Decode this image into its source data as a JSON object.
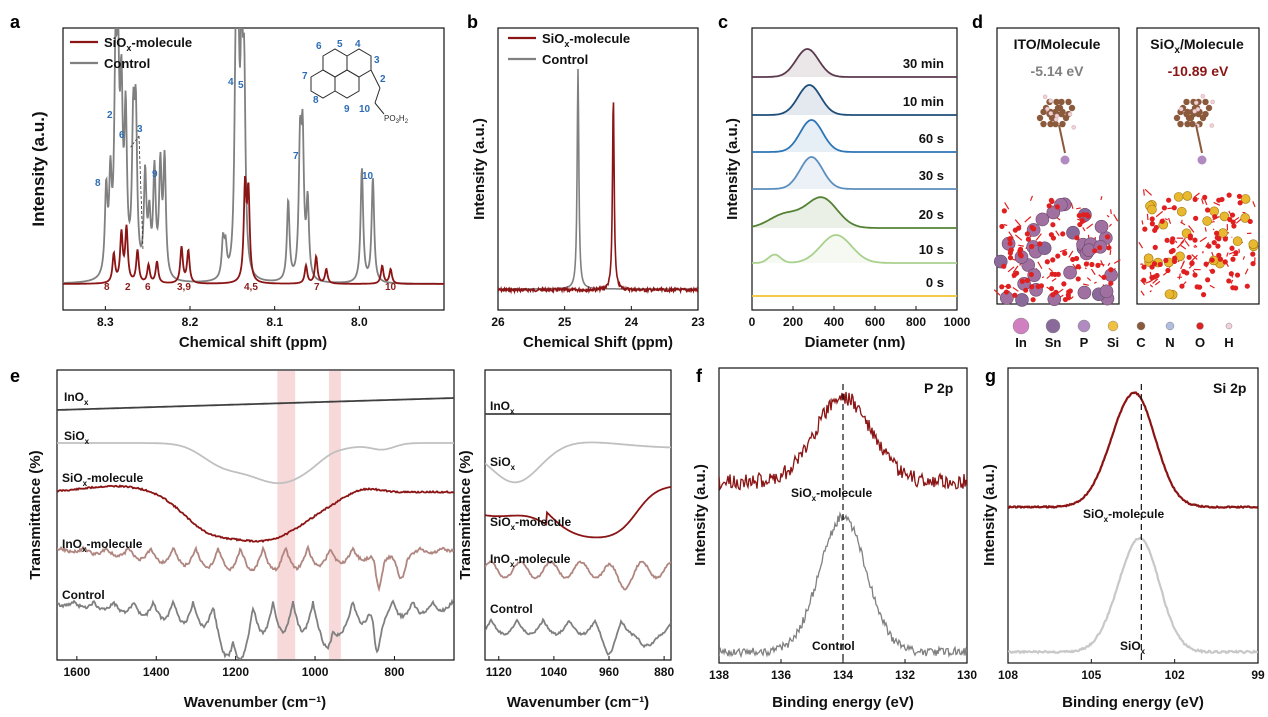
{
  "colors": {
    "siox_molecule": "#8b1414",
    "control": "#808080",
    "inox": "#404040",
    "siox": "#c0c0c0",
    "inox_molecule": "#b08680",
    "xps_siox": "#c8c8c8",
    "highlight": "#f7d9d9",
    "dls": [
      "#f2c230",
      "#a9d18e",
      "#548235",
      "#5b8fbd",
      "#2e75b6",
      "#1f4e79",
      "#5b3a4d"
    ],
    "atoms": [
      "#d080c0",
      "#8a6a9a",
      "#b08ac0",
      "#f0c040",
      "#8b5a3c",
      "#b0bce0",
      "#e02020",
      "#f4d0d8"
    ]
  },
  "panels": {
    "a": {
      "label": "a"
    },
    "b": {
      "label": "b"
    },
    "c": {
      "label": "c"
    },
    "d": {
      "label": "d"
    },
    "e": {
      "label": "e"
    },
    "f": {
      "label": "f"
    },
    "g": {
      "label": "g"
    }
  },
  "chart_data": [
    {
      "id": "a",
      "type": "line",
      "xlabel": "Chemical shift (ppm)",
      "ylabel": "Intensity (a.u.)",
      "xlim": [
        8.35,
        7.9
      ],
      "xticks": [
        "8.3",
        "8.2",
        "8.1",
        "8.0"
      ],
      "legend": [
        "SiOx-molecule",
        "Control"
      ],
      "control_peak_labels": [
        "8",
        "2",
        "6",
        "3",
        "9",
        "4",
        "5",
        "7",
        "10"
      ],
      "molecule_peak_labels": [
        "8",
        "2",
        "6",
        "3,9",
        "4,5",
        "7",
        "10"
      ],
      "structure_labels": [
        "6",
        "5",
        "4",
        "3",
        "2",
        "7",
        "8",
        "9",
        "10",
        "PO3H2"
      ],
      "series": [
        {
          "name": "Control",
          "peaks": [
            [
              8.299,
              0.42
            ],
            [
              8.294,
              0.45
            ],
            [
              8.288,
              0.94
            ],
            [
              8.285,
              0.9
            ],
            [
              8.281,
              0.82
            ],
            [
              8.276,
              0.76
            ],
            [
              8.267,
              0.7
            ],
            [
              8.264,
              0.74
            ],
            [
              8.253,
              0.5
            ],
            [
              8.248,
              0.28
            ],
            [
              8.242,
              0.52
            ],
            [
              8.235,
              0.54
            ],
            [
              8.23,
              0.58
            ],
            [
              8.161,
              0.18
            ],
            [
              8.158,
              0.14
            ],
            [
              8.146,
              1.0
            ],
            [
              8.143,
              0.94
            ],
            [
              8.139,
              0.98
            ],
            [
              8.136,
              0.88
            ],
            [
              8.084,
              0.4
            ],
            [
              8.07,
              0.64
            ],
            [
              8.067,
              0.66
            ],
            [
              8.061,
              0.38
            ],
            [
              7.997,
              0.57
            ],
            [
              7.984,
              0.52
            ]
          ]
        },
        {
          "name": "SiOx-molecule",
          "peaks": [
            [
              8.29,
              0.16
            ],
            [
              8.281,
              0.27
            ],
            [
              8.275,
              0.3
            ],
            [
              8.262,
              0.18
            ],
            [
              8.249,
              0.1
            ],
            [
              8.239,
              0.12
            ],
            [
              8.21,
              0.2
            ],
            [
              8.202,
              0.18
            ],
            [
              8.135,
              0.52
            ],
            [
              8.131,
              0.48
            ],
            [
              8.063,
              0.1
            ],
            [
              8.051,
              0.15
            ],
            [
              8.039,
              0.08
            ],
            [
              7.973,
              0.1
            ],
            [
              7.963,
              0.08
            ]
          ]
        }
      ]
    },
    {
      "id": "b",
      "type": "line",
      "xlabel": "Chemical Shift (ppm)",
      "ylabel": "Intensity (a.u.)",
      "xlim": [
        26,
        23
      ],
      "xticks": [
        26,
        25,
        24,
        23
      ],
      "legend": [
        "SiOx-molecule",
        "Control"
      ],
      "series": [
        {
          "name": "Control",
          "peak_ppm": 24.8,
          "height": 1.0
        },
        {
          "name": "SiOx-molecule",
          "peak_ppm": 24.27,
          "height": 0.88
        }
      ]
    },
    {
      "id": "c",
      "type": "area",
      "xlabel": "Diameter (nm)",
      "ylabel": "Intensity (a.u.)",
      "xlim": [
        0,
        1000
      ],
      "xticks": [
        0,
        200,
        400,
        600,
        800,
        1000
      ],
      "series": [
        {
          "name": "0 s",
          "peaks": []
        },
        {
          "name": "10 s",
          "peaks": [
            [
              110,
              0.3
            ],
            [
              410,
              1.0
            ]
          ]
        },
        {
          "name": "20 s",
          "peaks": [
            [
              160,
              0.45
            ],
            [
              340,
              1.0
            ]
          ]
        },
        {
          "name": "30 s",
          "peaks": [
            [
              290,
              1.0
            ]
          ]
        },
        {
          "name": "60 s",
          "peaks": [
            [
              290,
              1.0
            ]
          ]
        },
        {
          "name": "10 min",
          "peaks": [
            [
              280,
              1.0
            ]
          ]
        },
        {
          "name": "30 min",
          "peaks": [
            [
              270,
              1.0
            ]
          ]
        }
      ]
    },
    {
      "id": "e",
      "type": "line",
      "xlabel": "Wavenumber (cm⁻¹)",
      "ylabel": "Transmittance (%)",
      "xlim": [
        1650,
        650
      ],
      "xticks": [
        1600,
        1400,
        1200,
        1000,
        800
      ],
      "highlight_bands": [
        [
          1095,
          1050
        ],
        [
          965,
          935
        ]
      ],
      "series": [
        "InOx",
        "SiOx",
        "SiOx-molecule",
        "InOx-molecule",
        "Control"
      ]
    },
    {
      "id": "e2",
      "type": "line",
      "xlabel": "Wavenumber (cm⁻¹)",
      "ylabel": "Transmittance (%)",
      "xlim": [
        1140,
        870
      ],
      "xticks": [
        1120,
        1040,
        960,
        880
      ],
      "series": [
        "InOx",
        "SiOx",
        "SiOx-molecule",
        "InOx-molecule",
        "Control"
      ]
    },
    {
      "id": "f",
      "type": "line",
      "title": "P 2p",
      "xlabel": "Binding energy (eV)",
      "ylabel": "Intensity (a.u.)",
      "xlim": [
        138,
        130
      ],
      "xticks": [
        138,
        136,
        134,
        132,
        130
      ],
      "reference_line": 134.0,
      "series": [
        {
          "name": "SiOx-molecule",
          "center": 134.0,
          "sigma": 0.9
        },
        {
          "name": "Control",
          "center": 134.0,
          "sigma": 0.75
        }
      ]
    },
    {
      "id": "g",
      "type": "line",
      "title": "Si 2p",
      "xlabel": "Binding energy (eV)",
      "ylabel": "Intensity (a.u.)",
      "xlim": [
        108,
        99
      ],
      "xticks": [
        108,
        105,
        102,
        99
      ],
      "reference_line": 103.2,
      "series": [
        {
          "name": "SiOx-molecule",
          "center": 103.45,
          "sigma": 0.75
        },
        {
          "name": "SiOx",
          "center": 103.25,
          "sigma": 0.7
        }
      ]
    }
  ],
  "panel_d": {
    "left_title": "ITO/Molecule",
    "left_energy": "-5.14 eV",
    "right_title": "SiOx/Molecule",
    "right_energy": "-10.89 eV",
    "atom_legend": [
      "In",
      "Sn",
      "P",
      "Si",
      "C",
      "N",
      "O",
      "H"
    ]
  }
}
